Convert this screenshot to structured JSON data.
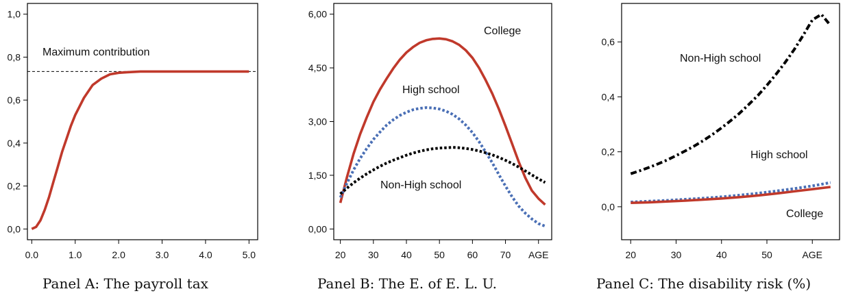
{
  "figure": {
    "captions": [
      "Panel A: The payroll tax",
      "Panel B: The E. of E. L. U.",
      "Panel C: The disability risk (%)"
    ]
  },
  "colors": {
    "college": "#c0392b",
    "high_school": "#4a6fb5",
    "non_high_school": "#000000",
    "axis": "#000000"
  },
  "chart_data": [
    {
      "type": "line",
      "title": "Panel A: The payroll tax",
      "xlim": [
        -0.1,
        5.2
      ],
      "ylim": [
        -0.05,
        1.05
      ],
      "xticks": [
        0,
        1,
        2,
        3,
        4,
        5
      ],
      "xtick_labels": [
        "0.0",
        "1.0",
        "2.0",
        "3.0",
        "4.0",
        "5.0"
      ],
      "yticks": [
        0,
        0.2,
        0.4,
        0.6,
        0.8,
        1.0
      ],
      "ytick_labels": [
        "0,0",
        "0,2",
        "0,4",
        "0,6",
        "0,8",
        "1,0"
      ],
      "series": [
        {
          "name": "",
          "style": "solid",
          "color": "#c0392b",
          "x": [
            0,
            0.1,
            0.2,
            0.3,
            0.4,
            0.5,
            0.6,
            0.7,
            0.8,
            0.9,
            1.0,
            1.2,
            1.4,
            1.6,
            1.8,
            2.0,
            2.2,
            2.5,
            3.0,
            3.5,
            4.0,
            4.5,
            5.0
          ],
          "y": [
            0.0,
            0.01,
            0.04,
            0.09,
            0.15,
            0.22,
            0.29,
            0.36,
            0.42,
            0.48,
            0.53,
            0.61,
            0.67,
            0.7,
            0.72,
            0.727,
            0.73,
            0.733,
            0.733,
            0.733,
            0.733,
            0.733,
            0.733
          ]
        }
      ],
      "reference_lines": [
        {
          "label": "Maximum contribution",
          "y": 0.733,
          "style": "dashed"
        }
      ]
    },
    {
      "type": "line",
      "title": "Panel B: The E. of E. L. U.",
      "xlim": [
        18,
        84
      ],
      "ylim": [
        -0.3,
        6.3
      ],
      "xticks": [
        20,
        30,
        40,
        50,
        60,
        70,
        80
      ],
      "xtick_labels": [
        "20",
        "30",
        "40",
        "50",
        "60",
        "70",
        "AGE"
      ],
      "yticks": [
        0,
        1.5,
        3.0,
        4.5,
        6.0
      ],
      "ytick_labels": [
        "0,00",
        "1,50",
        "3,00",
        "4,50",
        "6,00"
      ],
      "series": [
        {
          "name": "College",
          "style": "solid",
          "color": "#c0392b",
          "x": [
            20,
            22,
            24,
            26,
            28,
            30,
            32,
            34,
            36,
            38,
            40,
            42,
            44,
            46,
            48,
            50,
            52,
            54,
            56,
            58,
            60,
            62,
            64,
            66,
            68,
            70,
            72,
            74,
            76,
            78,
            80,
            82
          ],
          "y": [
            0.73,
            1.45,
            2.1,
            2.65,
            3.12,
            3.55,
            3.9,
            4.2,
            4.48,
            4.73,
            4.93,
            5.08,
            5.2,
            5.27,
            5.31,
            5.32,
            5.3,
            5.24,
            5.14,
            4.99,
            4.78,
            4.5,
            4.16,
            3.78,
            3.35,
            2.88,
            2.38,
            1.88,
            1.43,
            1.07,
            0.85,
            0.68
          ]
        },
        {
          "name": "High school",
          "style": "dotted",
          "color": "#4a6fb5",
          "x": [
            20,
            22,
            24,
            26,
            28,
            30,
            32,
            34,
            36,
            38,
            40,
            42,
            44,
            46,
            48,
            50,
            52,
            54,
            56,
            58,
            60,
            62,
            64,
            66,
            68,
            70,
            72,
            74,
            76,
            78,
            80,
            82
          ],
          "y": [
            0.88,
            1.28,
            1.65,
            1.97,
            2.25,
            2.5,
            2.71,
            2.9,
            3.05,
            3.17,
            3.26,
            3.33,
            3.37,
            3.39,
            3.38,
            3.35,
            3.29,
            3.2,
            3.07,
            2.9,
            2.69,
            2.44,
            2.15,
            1.85,
            1.52,
            1.2,
            0.9,
            0.64,
            0.44,
            0.28,
            0.15,
            0.08
          ]
        },
        {
          "name": "Non-High school",
          "style": "dotted",
          "color": "#000000",
          "x": [
            20,
            22,
            24,
            26,
            28,
            30,
            32,
            34,
            36,
            38,
            40,
            42,
            44,
            46,
            48,
            50,
            52,
            54,
            56,
            58,
            60,
            62,
            64,
            66,
            68,
            70,
            72,
            74,
            76,
            78,
            80,
            82
          ],
          "y": [
            0.98,
            1.14,
            1.29,
            1.42,
            1.54,
            1.65,
            1.75,
            1.84,
            1.92,
            1.99,
            2.06,
            2.12,
            2.17,
            2.21,
            2.24,
            2.26,
            2.27,
            2.28,
            2.27,
            2.25,
            2.22,
            2.18,
            2.13,
            2.07,
            2.0,
            1.92,
            1.83,
            1.73,
            1.62,
            1.51,
            1.4,
            1.3
          ]
        }
      ],
      "annotations": [
        "College",
        "High school",
        "Non-High school"
      ]
    },
    {
      "type": "line",
      "title": "Panel C: The disability risk (%)",
      "xlim": [
        18,
        66
      ],
      "ylim": [
        -0.12,
        0.74
      ],
      "xticks": [
        20,
        30,
        40,
        50,
        60
      ],
      "xtick_labels": [
        "20",
        "30",
        "40",
        "50",
        "AGE"
      ],
      "yticks": [
        0,
        0.2,
        0.4,
        0.6
      ],
      "ytick_labels": [
        "0,0",
        "0,2",
        "0,4",
        "0,6"
      ],
      "series": [
        {
          "name": "Non-High school",
          "style": "dashdot",
          "color": "#000000",
          "x": [
            20,
            22,
            24,
            26,
            28,
            30,
            32,
            34,
            36,
            38,
            40,
            42,
            44,
            46,
            48,
            50,
            52,
            54,
            56,
            58,
            60,
            62,
            64
          ],
          "y": [
            0.12,
            0.131,
            0.143,
            0.156,
            0.17,
            0.186,
            0.203,
            0.221,
            0.241,
            0.263,
            0.287,
            0.313,
            0.341,
            0.372,
            0.405,
            0.442,
            0.482,
            0.525,
            0.572,
            0.624,
            0.68,
            0.7,
            0.66
          ]
        },
        {
          "name": "High school",
          "style": "dotted",
          "color": "#4a6fb5",
          "x": [
            20,
            24,
            28,
            32,
            36,
            40,
            44,
            48,
            52,
            56,
            60,
            64
          ],
          "y": [
            0.017,
            0.02,
            0.023,
            0.027,
            0.031,
            0.036,
            0.042,
            0.049,
            0.057,
            0.066,
            0.076,
            0.088
          ]
        },
        {
          "name": "College",
          "style": "solid",
          "color": "#c0392b",
          "x": [
            20,
            24,
            28,
            32,
            36,
            40,
            44,
            48,
            52,
            56,
            60,
            64
          ],
          "y": [
            0.014,
            0.016,
            0.019,
            0.022,
            0.026,
            0.03,
            0.035,
            0.041,
            0.048,
            0.056,
            0.064,
            0.072
          ]
        }
      ],
      "annotations": [
        "Non-High school",
        "High school",
        "College"
      ]
    }
  ]
}
